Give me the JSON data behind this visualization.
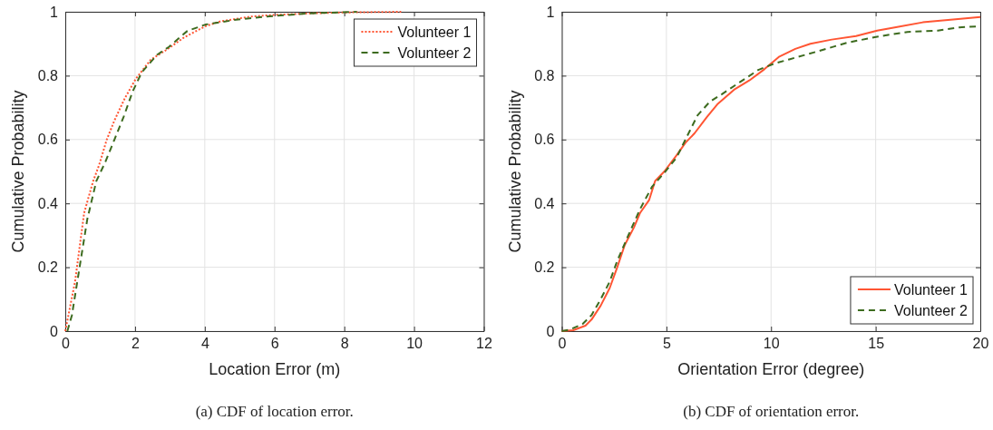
{
  "chart_data": [
    {
      "type": "line",
      "xlabel": "Location Error (m)",
      "ylabel": "Cumulative Probability",
      "annotations": [
        "(a) CDF of location error."
      ],
      "xlim": [
        0,
        12
      ],
      "ylim": [
        0,
        1
      ],
      "xticks": [
        0,
        2,
        4,
        6,
        8,
        10,
        12
      ],
      "yticks": [
        0,
        0.2,
        0.4,
        0.6,
        0.8,
        1
      ],
      "grid": true,
      "legend": "top right",
      "marker": "none",
      "series": [
        {
          "name": "Volunteer 1",
          "color": "#ff5533",
          "line_style": "dotted",
          "x": [
            0,
            0.28,
            0.54,
            0.8,
            0.97,
            1.19,
            1.41,
            1.71,
            2.02,
            2.45,
            2.89,
            3.41,
            4.02,
            4.45,
            5.32,
            5.93,
            7,
            8,
            9.63
          ],
          "values": [
            0,
            0.155,
            0.37,
            0.47,
            0.52,
            0.6,
            0.66,
            0.73,
            0.79,
            0.85,
            0.88,
            0.92,
            0.955,
            0.97,
            0.985,
            0.99,
            0.995,
            0.998,
            1
          ]
        },
        {
          "name": "Volunteer 2",
          "color": "#3d6b1f",
          "line_style": "dashed",
          "x": [
            0.06,
            0.19,
            0.41,
            0.63,
            0.89,
            1.15,
            1.41,
            1.67,
            1.93,
            2.19,
            2.63,
            2.97,
            3.5,
            4.02,
            4.89,
            5.76,
            7,
            8.36
          ],
          "values": [
            0,
            0.05,
            0.2,
            0.35,
            0.47,
            0.53,
            0.6,
            0.67,
            0.75,
            0.81,
            0.865,
            0.89,
            0.94,
            0.96,
            0.975,
            0.985,
            0.995,
            1
          ]
        }
      ]
    },
    {
      "type": "line",
      "xlabel": "Orientation Error (degree)",
      "ylabel": "Cumulative Probability",
      "annotations": [
        "(b) CDF of orientation error."
      ],
      "xlim": [
        0,
        20
      ],
      "ylim": [
        0,
        1
      ],
      "xticks": [
        0,
        5,
        10,
        15,
        20
      ],
      "yticks": [
        0,
        0.2,
        0.4,
        0.6,
        0.8,
        1
      ],
      "grid": true,
      "legend": "bottom right",
      "marker": "none",
      "series": [
        {
          "name": "Volunteer 1",
          "color": "#ff5533",
          "line_style": "solid",
          "x": [
            0,
            0.55,
            1.13,
            1.42,
            1.86,
            2.29,
            2.65,
            3.01,
            3.45,
            3.74,
            4.17,
            4.46,
            4.9,
            5.48,
            5.91,
            6.35,
            6.93,
            7.43,
            8.23,
            8.96,
            9.68,
            10.4,
            11.16,
            11.88,
            12.9,
            14.06,
            15.07,
            16.09,
            17.25,
            18.7,
            20
          ],
          "values": [
            0,
            0.003,
            0.017,
            0.036,
            0.08,
            0.135,
            0.2,
            0.27,
            0.325,
            0.37,
            0.41,
            0.47,
            0.5,
            0.55,
            0.59,
            0.62,
            0.67,
            0.71,
            0.756,
            0.785,
            0.82,
            0.86,
            0.884,
            0.9,
            0.913,
            0.924,
            0.941,
            0.953,
            0.967,
            0.976,
            0.984
          ]
        },
        {
          "name": "Volunteer 2",
          "color": "#3d6b1f",
          "line_style": "dashed",
          "x": [
            0,
            0.4,
            0.99,
            1.42,
            1.86,
            2.29,
            2.65,
            3.16,
            3.74,
            4.32,
            4.9,
            5.48,
            5.91,
            6.49,
            7.07,
            7.65,
            8.52,
            9.39,
            10.12,
            10.87,
            12.17,
            13.62,
            15.07,
            16.52,
            17.97,
            18.99,
            20
          ],
          "values": [
            0,
            0.005,
            0.022,
            0.05,
            0.1,
            0.155,
            0.22,
            0.297,
            0.382,
            0.453,
            0.496,
            0.543,
            0.6,
            0.676,
            0.718,
            0.742,
            0.78,
            0.818,
            0.837,
            0.851,
            0.875,
            0.903,
            0.922,
            0.937,
            0.941,
            0.951,
            0.955
          ]
        }
      ]
    }
  ]
}
